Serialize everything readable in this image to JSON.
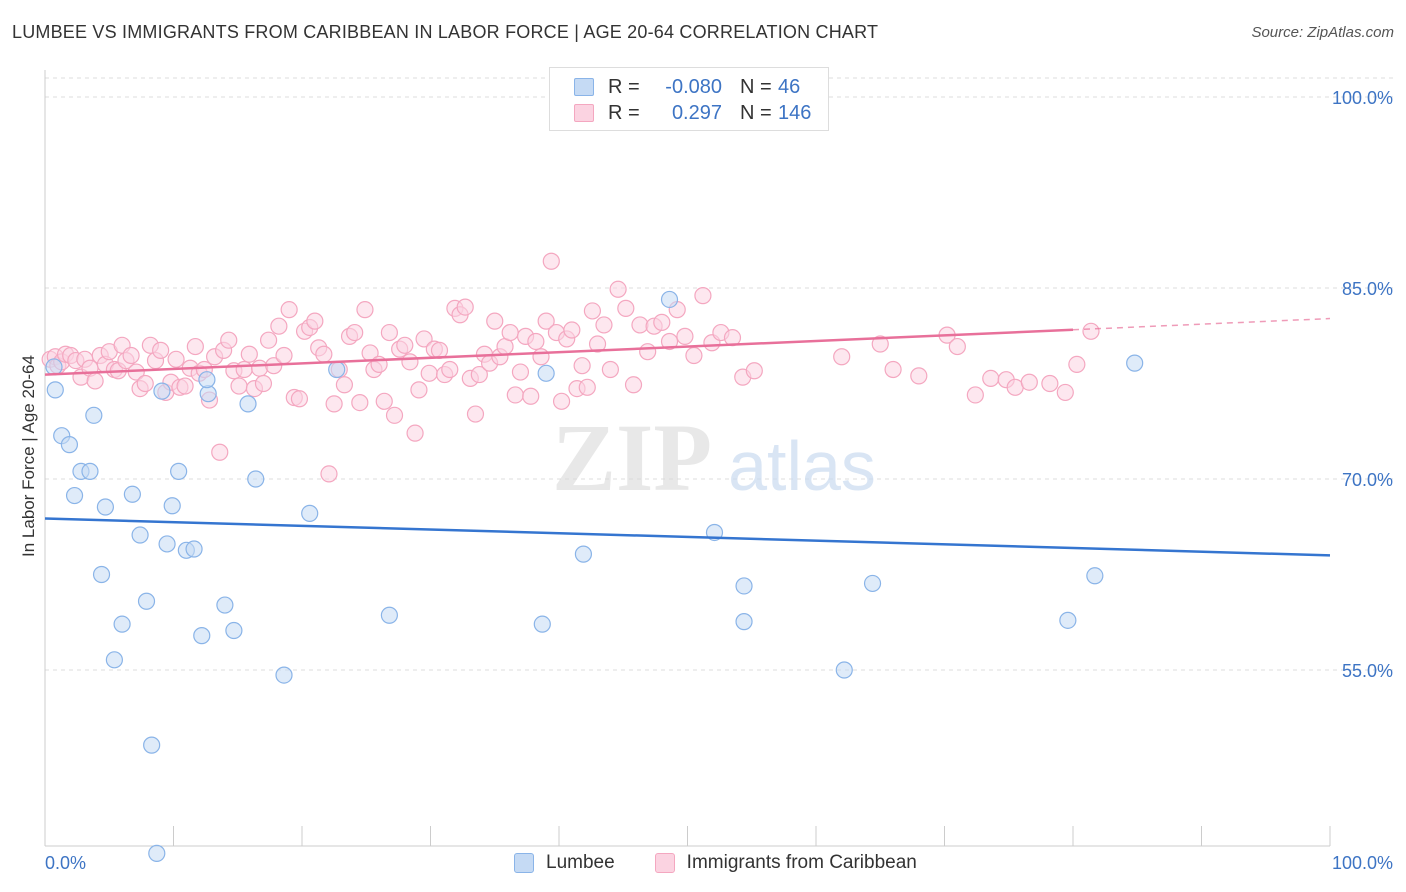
{
  "title": "LUMBEE VS IMMIGRANTS FROM CARIBBEAN IN LABOR FORCE | AGE 20-64 CORRELATION CHART",
  "source": "Source: ZipAtlas.com",
  "watermark": {
    "zip": "ZIP",
    "atlas": "atlas"
  },
  "legend": {
    "rows": [
      {
        "r_label": "R =",
        "r_value": "-0.080",
        "n_label": "N =",
        "n_value": "46",
        "color": "#8ab4e8"
      },
      {
        "r_label": "R =",
        "r_value": "0.297",
        "n_label": "N =",
        "n_value": "146",
        "color": "#f4a7c0"
      }
    ]
  },
  "bottom_legend": [
    "Lumbee",
    "Immigrants from Caribbean"
  ],
  "colors": {
    "lumbee": "#8ab4e8",
    "lumbee_line": "#3575d0",
    "caribbean": "#f4a7c0",
    "caribbean_line": "#e8709a",
    "tick_label": "#3d74c4"
  },
  "chart_data": {
    "type": "scatter",
    "title": "LUMBEE VS IMMIGRANTS FROM CARIBBEAN IN LABOR FORCE | AGE 20-64 CORRELATION CHART",
    "xlabel": "",
    "ylabel": "In Labor Force | Age 20-64",
    "xlim": [
      0,
      100
    ],
    "ylim": [
      40.5,
      102.0
    ],
    "x_tick_labels": [
      "0.0%",
      "100.0%"
    ],
    "y_ticks": [
      55.0,
      70.0,
      85.0,
      100.0
    ],
    "y_tick_labels": [
      "55.0%",
      "70.0%",
      "85.0%",
      "100.0%"
    ],
    "grid": true,
    "legend_position": "top-center",
    "series": [
      {
        "name": "Lumbee",
        "r": -0.08,
        "n": 46,
        "trend": {
          "x": [
            0,
            100
          ],
          "y": [
            66.9,
            64.0
          ],
          "dashed_from": null
        },
        "points": [
          [
            0.7,
            78.8
          ],
          [
            0.8,
            77.0
          ],
          [
            1.3,
            73.4
          ],
          [
            1.9,
            72.7
          ],
          [
            2.3,
            68.7
          ],
          [
            2.8,
            70.6
          ],
          [
            3.5,
            70.6
          ],
          [
            3.8,
            75.0
          ],
          [
            4.4,
            62.5
          ],
          [
            4.7,
            67.8
          ],
          [
            5.4,
            55.8
          ],
          [
            6.0,
            58.6
          ],
          [
            6.8,
            68.8
          ],
          [
            7.4,
            65.6
          ],
          [
            7.9,
            60.4
          ],
          [
            8.3,
            49.1
          ],
          [
            8.7,
            40.6
          ],
          [
            9.1,
            76.9
          ],
          [
            9.5,
            64.9
          ],
          [
            9.9,
            67.9
          ],
          [
            10.4,
            70.6
          ],
          [
            11.0,
            64.4
          ],
          [
            11.6,
            64.5
          ],
          [
            12.2,
            57.7
          ],
          [
            12.7,
            76.7
          ],
          [
            14.0,
            60.1
          ],
          [
            14.7,
            58.1
          ],
          [
            15.8,
            75.9
          ],
          [
            16.4,
            70.0
          ],
          [
            18.6,
            54.6
          ],
          [
            20.6,
            67.3
          ],
          [
            22.7,
            78.6
          ],
          [
            26.8,
            59.3
          ],
          [
            39.0,
            78.3
          ],
          [
            38.7,
            58.6
          ],
          [
            41.9,
            64.1
          ],
          [
            48.6,
            84.1
          ],
          [
            52.1,
            65.8
          ],
          [
            54.4,
            61.6
          ],
          [
            54.4,
            58.8
          ],
          [
            62.2,
            55.0
          ],
          [
            64.4,
            61.8
          ],
          [
            79.6,
            58.9
          ],
          [
            81.7,
            62.4
          ],
          [
            84.8,
            79.1
          ],
          [
            12.6,
            77.8
          ]
        ]
      },
      {
        "name": "Immigrants from Caribbean",
        "r": 0.297,
        "n": 146,
        "trend": {
          "x": [
            0,
            100
          ],
          "y": [
            78.2,
            82.6
          ],
          "dashed_from": 80
        },
        "points": [
          [
            0.4,
            79.4
          ],
          [
            0.8,
            79.6
          ],
          [
            1.0,
            78.9
          ],
          [
            1.3,
            79.2
          ],
          [
            1.6,
            79.8
          ],
          [
            2.0,
            79.7
          ],
          [
            2.4,
            79.3
          ],
          [
            2.8,
            78.0
          ],
          [
            3.1,
            79.4
          ],
          [
            3.5,
            78.7
          ],
          [
            3.9,
            77.7
          ],
          [
            4.3,
            79.7
          ],
          [
            4.7,
            79.0
          ],
          [
            5.0,
            80.0
          ],
          [
            5.4,
            78.6
          ],
          [
            5.7,
            78.5
          ],
          [
            6.0,
            80.5
          ],
          [
            6.3,
            79.3
          ],
          [
            6.7,
            79.7
          ],
          [
            7.1,
            78.4
          ],
          [
            7.4,
            77.1
          ],
          [
            7.8,
            77.5
          ],
          [
            8.2,
            80.5
          ],
          [
            8.6,
            79.3
          ],
          [
            9.0,
            80.1
          ],
          [
            9.4,
            76.8
          ],
          [
            9.8,
            77.6
          ],
          [
            10.2,
            79.4
          ],
          [
            10.5,
            77.2
          ],
          [
            10.9,
            77.3
          ],
          [
            11.3,
            78.7
          ],
          [
            11.7,
            80.4
          ],
          [
            12.0,
            78.3
          ],
          [
            12.4,
            78.6
          ],
          [
            12.8,
            76.2
          ],
          [
            13.2,
            79.6
          ],
          [
            13.6,
            72.1
          ],
          [
            13.9,
            80.1
          ],
          [
            14.3,
            80.9
          ],
          [
            14.7,
            78.5
          ],
          [
            15.1,
            77.3
          ],
          [
            15.5,
            78.6
          ],
          [
            15.9,
            79.8
          ],
          [
            16.3,
            77.1
          ],
          [
            16.7,
            78.7
          ],
          [
            17.0,
            77.5
          ],
          [
            17.4,
            80.9
          ],
          [
            17.8,
            78.9
          ],
          [
            18.2,
            82.0
          ],
          [
            18.6,
            79.7
          ],
          [
            19.0,
            83.3
          ],
          [
            19.4,
            76.4
          ],
          [
            19.8,
            76.3
          ],
          [
            20.2,
            81.6
          ],
          [
            20.6,
            81.9
          ],
          [
            21.0,
            82.4
          ],
          [
            21.3,
            80.3
          ],
          [
            21.7,
            79.8
          ],
          [
            22.1,
            70.4
          ],
          [
            22.5,
            75.9
          ],
          [
            22.9,
            78.6
          ],
          [
            23.3,
            77.4
          ],
          [
            23.7,
            81.2
          ],
          [
            24.1,
            81.5
          ],
          [
            24.5,
            76.0
          ],
          [
            24.9,
            83.3
          ],
          [
            25.3,
            79.9
          ],
          [
            25.6,
            78.6
          ],
          [
            26.0,
            79.0
          ],
          [
            26.4,
            76.1
          ],
          [
            26.8,
            81.5
          ],
          [
            27.2,
            75.0
          ],
          [
            27.6,
            80.2
          ],
          [
            28.0,
            80.5
          ],
          [
            28.4,
            79.2
          ],
          [
            28.8,
            73.6
          ],
          [
            29.1,
            77.0
          ],
          [
            29.5,
            81.0
          ],
          [
            29.9,
            78.3
          ],
          [
            30.3,
            80.2
          ],
          [
            30.7,
            80.1
          ],
          [
            31.1,
            78.2
          ],
          [
            31.5,
            78.6
          ],
          [
            31.9,
            83.4
          ],
          [
            32.3,
            82.9
          ],
          [
            32.7,
            83.5
          ],
          [
            33.1,
            77.9
          ],
          [
            33.5,
            75.1
          ],
          [
            33.8,
            78.2
          ],
          [
            34.2,
            79.8
          ],
          [
            34.6,
            79.1
          ],
          [
            35.0,
            82.4
          ],
          [
            35.4,
            79.6
          ],
          [
            35.8,
            80.4
          ],
          [
            36.2,
            81.5
          ],
          [
            36.6,
            76.6
          ],
          [
            37.0,
            78.4
          ],
          [
            37.4,
            81.2
          ],
          [
            37.8,
            76.5
          ],
          [
            38.2,
            80.8
          ],
          [
            38.6,
            79.6
          ],
          [
            39.0,
            82.4
          ],
          [
            39.4,
            87.1
          ],
          [
            39.8,
            81.5
          ],
          [
            40.2,
            76.1
          ],
          [
            40.6,
            81.0
          ],
          [
            41.0,
            81.7
          ],
          [
            41.4,
            77.1
          ],
          [
            41.8,
            78.9
          ],
          [
            42.2,
            77.2
          ],
          [
            42.6,
            83.2
          ],
          [
            43.0,
            80.6
          ],
          [
            43.5,
            82.1
          ],
          [
            44.0,
            78.6
          ],
          [
            44.6,
            84.9
          ],
          [
            45.2,
            83.4
          ],
          [
            45.8,
            77.4
          ],
          [
            46.3,
            82.1
          ],
          [
            46.9,
            80.0
          ],
          [
            47.4,
            82.0
          ],
          [
            48.0,
            82.3
          ],
          [
            48.6,
            80.8
          ],
          [
            49.2,
            83.3
          ],
          [
            49.8,
            81.2
          ],
          [
            50.5,
            79.7
          ],
          [
            51.2,
            84.4
          ],
          [
            51.9,
            80.7
          ],
          [
            52.6,
            81.5
          ],
          [
            53.5,
            81.1
          ],
          [
            54.3,
            78.0
          ],
          [
            55.2,
            78.5
          ],
          [
            62.0,
            79.6
          ],
          [
            65.0,
            80.6
          ],
          [
            66.0,
            78.6
          ],
          [
            68.0,
            78.1
          ],
          [
            70.2,
            81.3
          ],
          [
            71.0,
            80.4
          ],
          [
            72.4,
            76.6
          ],
          [
            73.6,
            77.9
          ],
          [
            74.8,
            77.8
          ],
          [
            75.5,
            77.2
          ],
          [
            76.6,
            77.6
          ],
          [
            78.2,
            77.5
          ],
          [
            79.4,
            76.8
          ],
          [
            80.3,
            79.0
          ],
          [
            81.4,
            81.6
          ]
        ]
      }
    ]
  }
}
